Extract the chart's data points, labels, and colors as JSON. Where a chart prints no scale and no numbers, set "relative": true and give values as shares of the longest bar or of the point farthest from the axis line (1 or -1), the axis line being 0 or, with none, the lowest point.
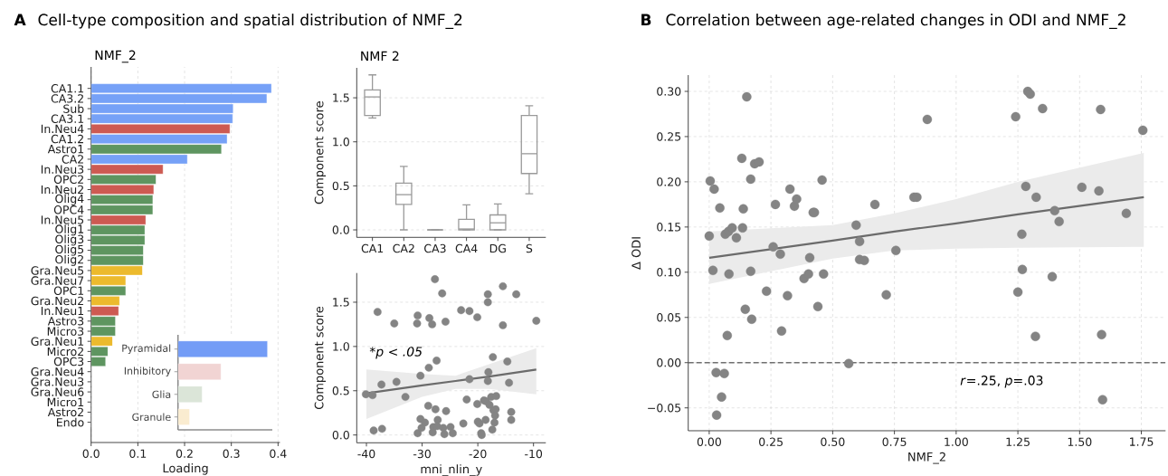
{
  "chart_data": [
    {
      "type": "bar",
      "orientation": "horizontal",
      "title": "NMF_2",
      "xlabel": "Loading",
      "annotations": [
        "A",
        "Cell-type composition and spatial distribution of NMF_2"
      ],
      "categories": [
        "CA1.1",
        "CA3.2",
        "Sub",
        "CA3.1",
        "In.Neu4",
        "CA1.2",
        "Astro1",
        "CA2",
        "In.Neu3",
        "OPC2",
        "In.Neu2",
        "Olig4",
        "OPC4",
        "In.Neu5",
        "Olig1",
        "Olig3",
        "Olig5",
        "Olig2",
        "Gra.Neu5",
        "Gra.Neu7",
        "OPC1",
        "Gra.Neu2",
        "In.Neu1",
        "Astro3",
        "Micro3",
        "Gra.Neu1",
        "Micro2",
        "OPC3",
        "Gra.Neu4",
        "Gra.Neu3",
        "Gra.Neu6",
        "Micro1",
        "Astro2",
        "Endo"
      ],
      "values": [
        0.386,
        0.376,
        0.304,
        0.303,
        0.297,
        0.291,
        0.279,
        0.206,
        0.154,
        0.139,
        0.134,
        0.132,
        0.132,
        0.117,
        0.115,
        0.115,
        0.112,
        0.112,
        0.11,
        0.074,
        0.074,
        0.061,
        0.059,
        0.052,
        0.052,
        0.046,
        0.036,
        0.031,
        0,
        0,
        0,
        0,
        0,
        0
      ],
      "colors": [
        "#76a1f7",
        "#76a1f7",
        "#76a1f7",
        "#76a1f7",
        "#cd5a52",
        "#76a1f7",
        "#5e9560",
        "#76a1f7",
        "#cd5a52",
        "#5e9560",
        "#cd5a52",
        "#5e9560",
        "#5e9560",
        "#cd5a52",
        "#5e9560",
        "#5e9560",
        "#5e9560",
        "#5e9560",
        "#ecba2d",
        "#ecba2d",
        "#5e9560",
        "#ecba2d",
        "#cd5a52",
        "#5e9560",
        "#5e9560",
        "#ecba2d",
        "#5e9560",
        "#5e9560",
        "#ecba2d",
        "#ecba2d",
        "#ecba2d",
        "#5e9560",
        "#5e9560",
        "#5e9560"
      ],
      "xlim": [
        0,
        0.404
      ],
      "xticks": [
        {
          "value": 0,
          "label": "0.0"
        },
        0.1,
        0.2,
        0.3,
        0.4
      ],
      "grid": "x"
    },
    {
      "type": "bar",
      "orientation": "horizontal",
      "relative": true,
      "categories": [
        "Pyramidal",
        "Inhibitory",
        "Glia",
        "Granule"
      ],
      "values": [
        1,
        0.48,
        0.27,
        0.13
      ],
      "colors": [
        "#739cf6",
        "#f1d4d3",
        "#dbe5d8",
        "#faecd0"
      ]
    },
    {
      "type": "box",
      "title": "NMF 2",
      "ylabel": "Component score",
      "categories": [
        "CA1",
        "CA2",
        "CA3",
        "CA4",
        "DG",
        "S"
      ],
      "series": [
        {
          "color": "#9a9a9a",
          "boxes": [
            {
              "low": 1.27,
              "q1": 1.3,
              "median": 1.51,
              "q3": 1.59,
              "high": 1.76
            },
            {
              "low": 0,
              "q1": 0.29,
              "median": 0.4,
              "q3": 0.53,
              "high": 0.72
            },
            {
              "low": 0,
              "q1": 0,
              "median": 0,
              "q3": 0,
              "high": 0
            },
            {
              "low": 0,
              "q1": 0,
              "median": 0.01,
              "q3": 0.12,
              "high": 0.285
            },
            {
              "low": 0,
              "q1": 0,
              "median": 0.08,
              "q3": 0.17,
              "high": 0.295
            },
            {
              "low": 0.41,
              "q1": 0.64,
              "median": 0.865,
              "q3": 1.3,
              "high": 1.41
            }
          ]
        }
      ],
      "ylim": [
        -0.085,
        1.84
      ],
      "yticks": [
        {
          "value": 0,
          "label": "0.0"
        },
        0.5,
        {
          "value": 1,
          "label": "1.0"
        },
        1.5
      ],
      "grid": "y"
    },
    {
      "type": "scatter",
      "xlabel": "mni_nlin_y",
      "ylabel": "Component score",
      "annotations": [
        "*p < .05"
      ],
      "series": [
        {
          "type": "scatter",
          "marker": "circle",
          "color": "#848484",
          "x": [
            -40.1,
            -38.9,
            -38.0,
            -38.7,
            -37.2,
            -37.3,
            -35.0,
            -34.6,
            -33.0,
            -30.8,
            -30.9,
            -30.3,
            -30.8,
            -30.3,
            -30.1,
            -29.5,
            -28.9,
            -28.8,
            -28.7,
            -28.2,
            -28.1,
            -28.0,
            -27.7,
            -27.6,
            -27.4,
            -27.2,
            -27.3,
            -26.4,
            -26.2,
            -26.0,
            -25.8,
            -25.7,
            -24.9,
            -24.5,
            -23.0,
            -22.6,
            -22.0,
            -21.5,
            -21.5,
            -20.1,
            -20.1,
            -20.0,
            -19.7,
            -19.4,
            -19.3,
            -18.9,
            -18.6,
            -18.5,
            -18.2,
            -18.2,
            -18.1,
            -18.2,
            -17.9,
            -17.6,
            -17.4,
            -17.3,
            -17.2,
            -17.0,
            -16.9,
            -16.7,
            -16.8,
            -15.5,
            -15.5,
            -14.7,
            -14.4,
            -14.0,
            -14.0,
            -13.1,
            -9.5
          ],
          "values": [
            0.46,
            0.45,
            1.39,
            0.05,
            0.07,
            0.57,
            1.26,
            0.6,
            0.43,
            1.35,
            1.26,
            0.67,
            0.02,
            0.18,
            0.08,
            0.14,
            0.33,
            0.76,
            1.32,
            1.25,
            0.03,
            0.09,
            1.76,
            0.29,
            0.84,
            0.17,
            0.1,
            1.6,
            0.08,
            0.01,
            1.28,
            0.27,
            0.09,
            0.02,
            1.41,
            0.13,
            0.4,
            0.63,
            1.4,
            1.33,
            0.35,
            0.15,
            0.13,
            0.02,
            0.0,
            0.39,
            0.17,
            0.38,
            1.59,
            1.5,
            0.71,
            0.61,
            0.34,
            0.43,
            0.06,
            0.88,
            0.28,
            0.14,
            0.22,
            0.44,
            0.29,
            1.68,
            1.24,
            0.83,
            0.59,
            0.26,
            0.17,
            1.59,
            1.29
          ]
        },
        {
          "type": "line",
          "marker": "none",
          "color": "#6b6b6b",
          "x": [
            -40,
            -30,
            -24,
            -18,
            -9.5
          ],
          "values": [
            0.47,
            0.56,
            0.61,
            0.66,
            0.74
          ],
          "lower": [
            0.18,
            0.43,
            0.52,
            0.52,
            0.46
          ],
          "upper": [
            0.74,
            0.69,
            0.67,
            0.8,
            0.98
          ]
        }
      ],
      "xlim": [
        -41.74,
        -7.79
      ],
      "xticks": [
        -40,
        -30,
        -20,
        -10
      ],
      "ylim": [
        -0.088,
        1.83
      ],
      "yticks": [
        {
          "value": 0,
          "label": "0.0"
        },
        0.5,
        {
          "value": 1,
          "label": "1.0"
        },
        1.5
      ],
      "grid": "y"
    },
    {
      "type": "scatter",
      "title": "Correlation between age-related changes in ODI and NMF_2",
      "xlabel": "NMF_2",
      "ylabel": "Δ ODI",
      "annotations": [
        "B",
        "*r*=.25, *p*=.03"
      ],
      "series": [
        {
          "type": "scatter",
          "marker": "circle",
          "color": "#848484",
          "x": [
            0.004,
            0.02,
            0.0,
            0.015,
            0.043,
            0.028,
            0.03,
            0.05,
            0.061,
            0.073,
            0.065,
            0.078,
            0.08,
            0.093,
            0.11,
            0.132,
            0.135,
            0.138,
            0.146,
            0.152,
            0.168,
            0.168,
            0.172,
            0.184,
            0.202,
            0.232,
            0.259,
            0.268,
            0.288,
            0.293,
            0.317,
            0.327,
            0.345,
            0.354,
            0.384,
            0.402,
            0.407,
            0.421,
            0.426,
            0.44,
            0.457,
            0.463,
            0.565,
            0.595,
            0.609,
            0.609,
            0.628,
            0.671,
            0.717,
            0.756,
            0.829,
            0.841,
            0.883,
            1.241,
            1.29,
            1.3,
            1.35,
            1.585,
            1.756,
            1.282,
            1.509,
            1.578,
            1.324,
            1.399,
            1.417,
            1.689,
            1.266,
            1.268,
            1.389,
            1.25,
            1.321,
            1.589,
            1.593
          ],
          "values": [
            0.201,
            0.192,
            0.14,
            0.102,
            0.171,
            -0.011,
            -0.058,
            -0.038,
            -0.012,
            0.03,
            0.142,
            0.145,
            0.098,
            0.149,
            0.138,
            0.226,
            0.149,
            0.17,
            0.059,
            0.294,
            0.203,
            0.101,
            0.048,
            0.22,
            0.222,
            0.079,
            0.128,
            0.175,
            0.12,
            0.035,
            0.074,
            0.192,
            0.173,
            0.181,
            0.093,
            0.098,
            0.116,
            0.166,
            0.166,
            0.062,
            0.202,
            0.098,
            -0.001,
            0.152,
            0.134,
            0.114,
            0.113,
            0.175,
            0.075,
            0.124,
            0.183,
            0.183,
            0.269,
            0.272,
            0.3,
            0.297,
            0.281,
            0.28,
            0.257,
            0.195,
            0.194,
            0.19,
            0.183,
            0.168,
            0.156,
            0.165,
            0.142,
            0.103,
            0.095,
            0.078,
            0.029,
            0.031,
            -0.041
          ]
        },
        {
          "type": "line",
          "marker": "none",
          "color": "#6b6b6b",
          "x": [
            0,
            0.5,
            0.75,
            1.0,
            1.25,
            1.76
          ],
          "values": [
            0.116,
            0.135,
            0.145,
            0.154,
            0.164,
            0.183
          ],
          "lower": [
            0.087,
            0.115,
            0.124,
            0.126,
            0.127,
            0.128
          ],
          "upper": [
            0.145,
            0.152,
            0.165,
            0.181,
            0.2,
            0.232
          ]
        }
      ],
      "ref_lines": [
        {
          "axis": "y",
          "value": 0,
          "color": "#707070",
          "line_style": "dashed"
        }
      ],
      "xlim": [
        -0.085,
        1.848
      ],
      "xticks": [
        {
          "value": 0,
          "label": "0.00"
        },
        0.25,
        {
          "value": 0.5,
          "label": "0.50"
        },
        0.75,
        {
          "value": 1,
          "label": "1.00"
        },
        1.25,
        {
          "value": 1.5,
          "label": "1.50"
        },
        1.75
      ],
      "ylim": [
        -0.0753,
        0.318
      ],
      "yticks": [
        {
          "value": -0.05,
          "label": "−0.05"
        },
        {
          "value": 0,
          "label": "0.00"
        },
        0.05,
        {
          "value": 0.1,
          "label": "0.10"
        },
        0.15,
        {
          "value": 0.2,
          "label": "0.20"
        },
        0.25,
        {
          "value": 0.3,
          "label": "0.30"
        }
      ],
      "grid": true
    }
  ]
}
